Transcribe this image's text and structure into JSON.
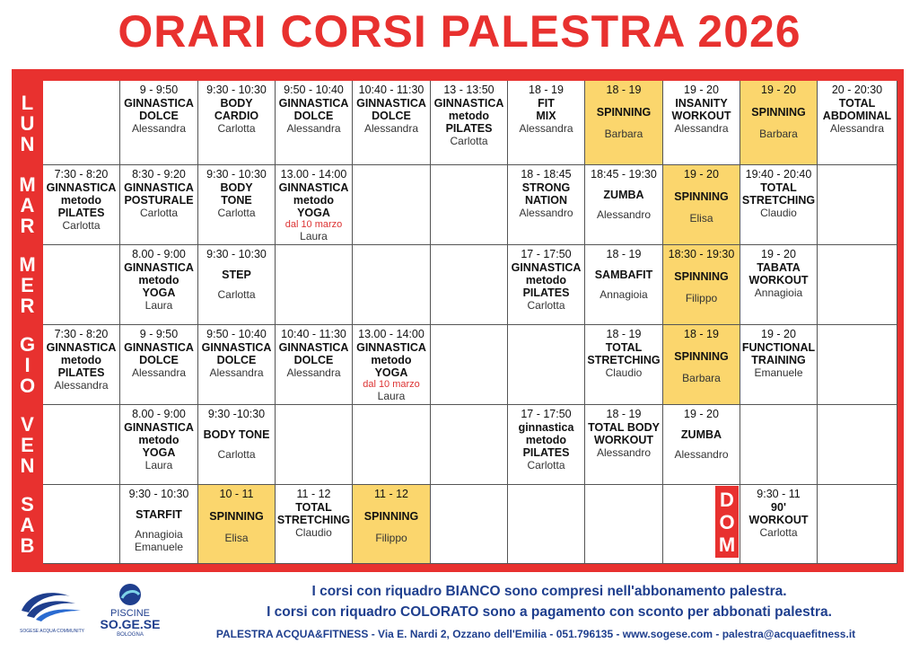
{
  "title": "ORARI CORSI PALESTRA 2026",
  "days": [
    {
      "label": "LUN",
      "letters": [
        "L",
        "U",
        "N"
      ]
    },
    {
      "label": "MAR",
      "letters": [
        "M",
        "A",
        "R"
      ]
    },
    {
      "label": "MER",
      "letters": [
        "M",
        "E",
        "R"
      ]
    },
    {
      "label": "GIO",
      "letters": [
        "G",
        "I",
        "O"
      ]
    },
    {
      "label": "VEN",
      "letters": [
        "V",
        "E",
        "N"
      ]
    },
    {
      "label": "SAB",
      "letters": [
        "S",
        "A",
        "B"
      ]
    }
  ],
  "dom": {
    "letters": [
      "D",
      "O",
      "M"
    ]
  },
  "rows": [
    [
      null,
      {
        "time": "9 - 9:50",
        "name": "GINNASTICA\nDOLCE",
        "instr": "Alessandra"
      },
      {
        "time": "9:30 - 10:30",
        "name": "BODY\nCARDIO",
        "instr": "Carlotta"
      },
      {
        "time": "9:50 - 10:40",
        "name": "GINNASTICA\nDOLCE",
        "instr": "Alessandra"
      },
      {
        "time": "10:40 - 11:30",
        "name": "GINNASTICA\nDOLCE",
        "instr": "Alessandra"
      },
      {
        "time": "13 - 13:50",
        "name": "GINNASTICA\nmetodo\nPILATES",
        "instr": "Carlotta"
      },
      {
        "time": "18 - 19",
        "name": "FIT\nMIX",
        "instr": "Alessandra"
      },
      {
        "time": "18 - 19",
        "name": "SPINNING",
        "instr": "Barbara",
        "paid": true
      },
      {
        "time": "19 - 20",
        "name": "INSANITY\nWORKOUT",
        "instr": "Alessandra"
      },
      {
        "time": "19 - 20",
        "name": "SPINNING",
        "instr": "Barbara",
        "paid": true
      },
      {
        "time": "20 - 20:30",
        "name": "TOTAL\nABDOMINAL",
        "instr": "Alessandra"
      }
    ],
    [
      {
        "time": "7:30 - 8:20",
        "name": "GINNASTICA\nmetodo\nPILATES",
        "instr": "Carlotta"
      },
      {
        "time": "8:30 - 9:20",
        "name": "GINNASTICA\nPOSTURALE",
        "instr": "Carlotta"
      },
      {
        "time": "9:30 - 10:30",
        "name": "BODY\nTONE",
        "instr": "Carlotta"
      },
      {
        "time": "13.00 - 14:00",
        "name": "GINNASTICA\nmetodo\nYOGA",
        "note": "dal 10 marzo",
        "instr": "Laura"
      },
      null,
      null,
      {
        "time": "18 - 18:45",
        "name": "STRONG\nNATION",
        "instr": "Alessandro"
      },
      {
        "time": "18:45 - 19:30",
        "name": "ZUMBA",
        "instr": "Alessandro"
      },
      {
        "time": "19 - 20",
        "name": "SPINNING",
        "instr": "Elisa",
        "paid": true
      },
      {
        "time": "19:40 - 20:40",
        "name": "TOTAL\nSTRETCHING",
        "instr": "Claudio"
      },
      null
    ],
    [
      null,
      {
        "time": "8.00 - 9:00",
        "name": "GINNASTICA\nmetodo\nYOGA",
        "instr": "Laura"
      },
      {
        "time": "9:30 - 10:30",
        "name": "STEP",
        "instr": "Carlotta"
      },
      null,
      null,
      null,
      {
        "time": "17 - 17:50",
        "name": "GINNASTICA\nmetodo\nPILATES",
        "instr": "Carlotta"
      },
      {
        "time": "18 - 19",
        "name": "SAMBAFIT",
        "instr": "Annagioia"
      },
      {
        "time": "18:30 - 19:30",
        "name": "SPINNING",
        "instr": "Filippo",
        "paid": true
      },
      {
        "time": "19 - 20",
        "name": "TABATA\nWORKOUT",
        "instr": "Annagioia"
      },
      null
    ],
    [
      {
        "time": "7:30 - 8:20",
        "name": "GINNASTICA\nmetodo\nPILATES",
        "instr": "Alessandra"
      },
      {
        "time": "9 - 9:50",
        "name": "GINNASTICA\nDOLCE",
        "instr": "Alessandra"
      },
      {
        "time": "9:50 - 10:40",
        "name": "GINNASTICA\nDOLCE",
        "instr": "Alessandra"
      },
      {
        "time": "10:40 - 11:30",
        "name": "GINNASTICA\nDOLCE",
        "instr": "Alessandra"
      },
      {
        "time": "13.00 - 14:00",
        "name": "GINNASTICA\nmetodo\nYOGA",
        "note": "dal 10 marzo",
        "instr": "Laura"
      },
      null,
      null,
      {
        "time": "18 - 19",
        "name": "TOTAL\nSTRETCHING",
        "instr": "Claudio"
      },
      {
        "time": "18 - 19",
        "name": "SPINNING",
        "instr": "Barbara",
        "paid": true
      },
      {
        "time": "19 - 20",
        "name": "FUNCTIONAL\nTRAINING",
        "instr": "Emanuele"
      },
      null
    ],
    [
      null,
      {
        "time": "8.00 - 9:00",
        "name": "GINNASTICA\nmetodo\nYOGA",
        "instr": "Laura"
      },
      {
        "time": "9:30 -10:30",
        "name": "BODY TONE",
        "instr": "Carlotta"
      },
      null,
      null,
      null,
      {
        "time": "17 - 17:50",
        "name": "ginnastica\nmetodo\nPILATES",
        "instr": "Carlotta"
      },
      {
        "time": "18 - 19",
        "name": "TOTAL BODY\nWORKOUT",
        "instr": "Alessandro"
      },
      {
        "time": "19 - 20",
        "name": "ZUMBA",
        "instr": "Alessandro"
      },
      null,
      null
    ],
    [
      null,
      {
        "time": "9:30 - 10:30",
        "name": "STARFIT",
        "instr": "Annagioia\nEmanuele"
      },
      {
        "time": "10 - 11",
        "name": "SPINNING",
        "instr": "Elisa",
        "paid": true
      },
      {
        "time": "11 - 12",
        "name": "TOTAL\nSTRETCHING",
        "instr": "Claudio"
      },
      {
        "time": "11 - 12",
        "name": "SPINNING",
        "instr": "Filippo",
        "paid": true
      },
      null,
      null,
      null,
      null,
      {
        "time": "9:30 - 11",
        "name": "90'\nWORKOUT",
        "instr": "Carlotta"
      },
      null
    ]
  ],
  "footer": {
    "line1": "I corsi con riquadro BIANCO sono compresi nell'abbonamento palestra.",
    "line2": "I corsi con riquadro COLORATO sono a pagamento con sconto per abbonati palestra.",
    "line3": "PALESTRA ACQUA&FITNESS - Via E. Nardi 2, Ozzano dell'Emilia - 051.796135 - www.sogese.com - palestra@acquaefitness.it"
  },
  "logos": {
    "left_caption": "SOGESE ACQUA COMMUNITY",
    "right_line1": "PISCINE",
    "right_line2": "SO.GE.SE",
    "right_line3": "BOLOGNA"
  },
  "colors": {
    "red": "#e8312f",
    "paid": "#fbd66d",
    "blue": "#1f3f8e"
  }
}
